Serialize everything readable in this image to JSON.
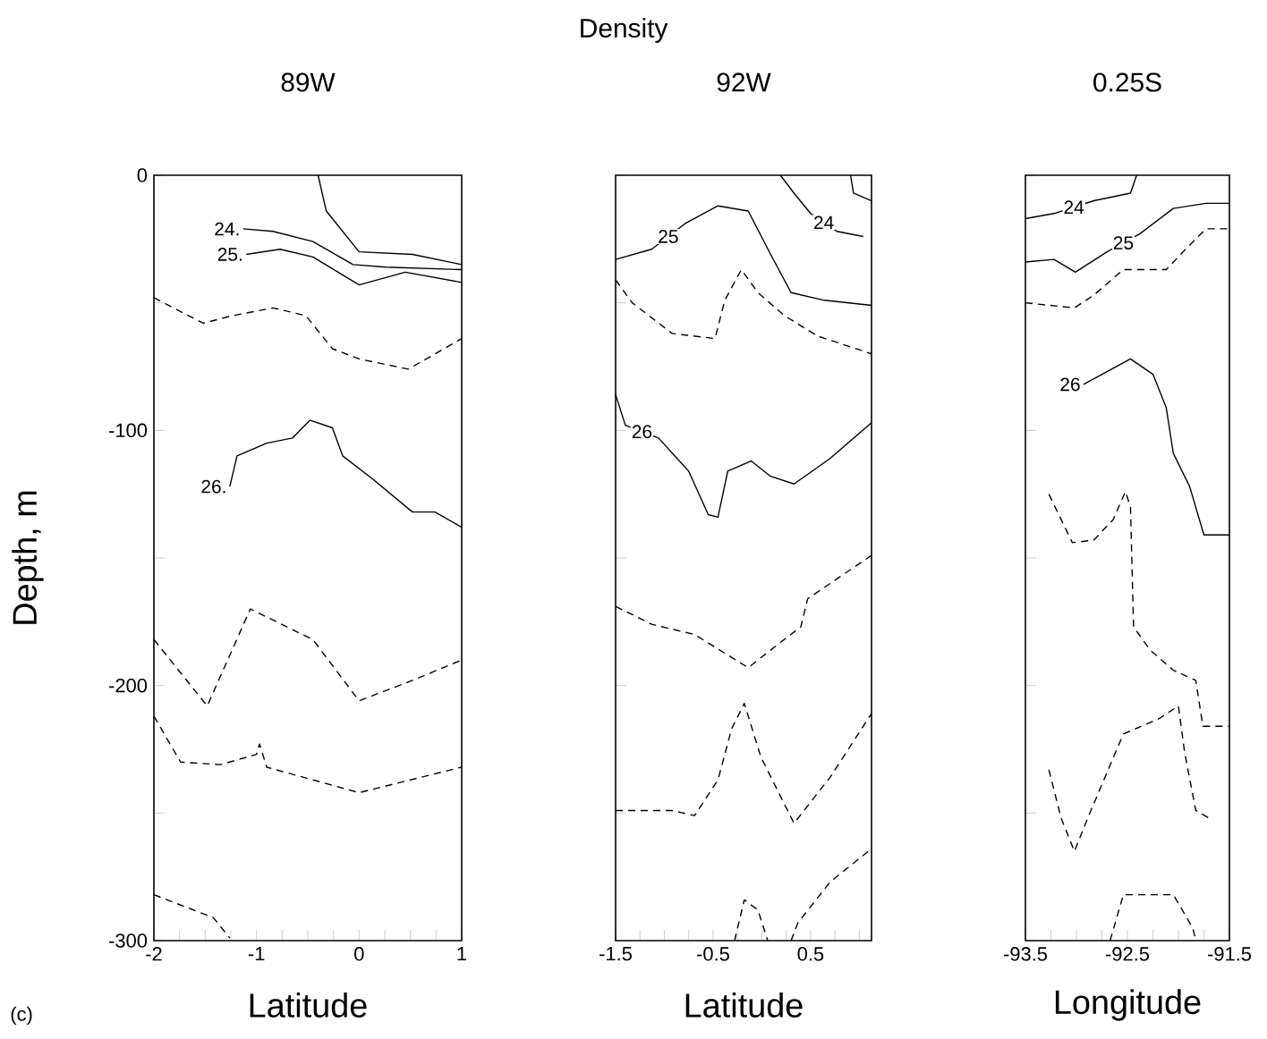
{
  "chart_data": [
    {
      "type": "line",
      "title": "89W",
      "xlabel": "Latitude",
      "ylabel": "Depth, m",
      "xlim": [
        -2,
        1
      ],
      "ylim": [
        -300,
        0
      ],
      "xticks": [
        -2,
        {
          "value": -1.75,
          "label": null
        },
        {
          "value": -1.5,
          "label": null
        },
        {
          "value": -1.25,
          "label": null
        },
        -1,
        {
          "value": -0.75,
          "label": null
        },
        {
          "value": -0.5,
          "label": null
        },
        {
          "value": -0.25,
          "label": null
        },
        0,
        {
          "value": 0.25,
          "label": null
        },
        {
          "value": 0.5,
          "label": null
        },
        {
          "value": 0.75,
          "label": null
        },
        1
      ],
      "yticks": [
        -300,
        {
          "value": -250,
          "label": null
        },
        -200,
        {
          "value": -150,
          "label": null
        },
        -100,
        {
          "value": -50,
          "label": null
        },
        0
      ],
      "annotations": [
        "(c)"
      ],
      "series": [
        {
          "color": "#000000",
          "line_style": "solid",
          "x": [
            -0.4,
            -0.32,
            0,
            0.52,
            1
          ],
          "values": [
            0,
            -14,
            -30,
            -31,
            -35
          ]
        },
        {
          "name": "24.",
          "color": "#000000",
          "line_style": "solid",
          "x": [
            -1.13,
            -0.84,
            -0.45,
            -0.06,
            0.26,
            1
          ],
          "values": [
            -21,
            -22,
            -26,
            -35,
            -36,
            -37
          ]
        },
        {
          "name": "25.",
          "color": "#000000",
          "line_style": "solid",
          "x": [
            -1.1,
            -0.77,
            -0.45,
            0,
            0.45,
            1
          ],
          "values": [
            -31,
            -29,
            -32,
            -43,
            -38,
            -42
          ]
        },
        {
          "color": "#000000",
          "line_style": "dashed",
          "x": [
            -2,
            -1.52,
            -1.23,
            -0.84,
            -0.52,
            -0.26,
            0,
            0.48,
            1
          ],
          "values": [
            -48,
            -58,
            -55,
            -52,
            -55,
            -68,
            -72,
            -76,
            -64
          ]
        },
        {
          "name": "26.",
          "color": "#000000",
          "line_style": "solid",
          "x": [
            -1.26,
            -1.19,
            -0.9,
            -0.65,
            -0.48,
            -0.26,
            -0.16,
            0.13,
            0.52,
            0.74,
            1
          ],
          "values": [
            -122,
            -110,
            -105,
            -103,
            -96,
            -99,
            -110,
            -119,
            -132,
            -132,
            -138
          ]
        },
        {
          "color": "#000000",
          "line_style": "dashed",
          "x": [
            -2,
            -1.48,
            -1.06,
            -0.45,
            0,
            0.52,
            1
          ],
          "values": [
            -182,
            -208,
            -170,
            -182,
            -206,
            -198,
            -190
          ]
        },
        {
          "color": "#000000",
          "line_style": "dashed",
          "x": [
            -2,
            -1.74,
            -1.35,
            -1,
            -0.97,
            -0.9,
            0,
            1
          ],
          "values": [
            -212,
            -230,
            -231,
            -227,
            -223,
            -232,
            -242,
            -232
          ]
        },
        {
          "color": "#000000",
          "line_style": "dashed",
          "x": [
            -2,
            -1.42,
            -1.26
          ],
          "values": [
            -282,
            -291,
            -299
          ]
        }
      ]
    },
    {
      "type": "line",
      "title": "Density",
      "subtitle": "92W",
      "xlabel": "Latitude",
      "xlim": [
        -1.5,
        1.125
      ],
      "ylim": [
        -300,
        0
      ],
      "tick_labels": "x",
      "xticks": [
        -1.5,
        {
          "value": -1.25,
          "label": null
        },
        {
          "value": -1,
          "label": null
        },
        {
          "value": -0.75,
          "label": null
        },
        -0.5,
        {
          "value": -0.25,
          "label": null
        },
        {
          "value": 0,
          "label": null
        },
        {
          "value": 0.25,
          "label": null
        },
        0.5,
        {
          "value": 0.75,
          "label": null
        },
        {
          "value": 1,
          "label": null
        }
      ],
      "yticks": [
        -300,
        -250,
        -200,
        -150,
        -100,
        -50,
        0
      ],
      "series": [
        {
          "name": "24",
          "color": "#000000",
          "line_style": "solid",
          "x": [
            0.19,
            0.33,
            0.5,
            0.77,
            1.04
          ],
          "values": [
            0,
            -7,
            -15,
            -22,
            -24
          ]
        },
        {
          "color": "#000000",
          "line_style": "solid",
          "x": [
            0.91,
            0.94,
            1.125
          ],
          "values": [
            0,
            -7,
            -10
          ]
        },
        {
          "name": "25",
          "color": "#000000",
          "line_style": "solid",
          "x": [
            -1.5,
            -1.13,
            -0.79,
            -0.45,
            -0.14,
            0.09,
            0.3,
            0.64,
            1.125
          ],
          "values": [
            -33,
            -29,
            -19,
            -12,
            -14,
            -31,
            -46,
            -49,
            -51
          ]
        },
        {
          "color": "#000000",
          "line_style": "dashed",
          "x": [
            -1.5,
            -1.33,
            -0.92,
            -0.48,
            -0.38,
            -0.21,
            -0.04,
            0.23,
            0.57,
            1.125
          ],
          "values": [
            -41,
            -50,
            -62,
            -64,
            -49,
            -37,
            -46,
            -55,
            -63,
            -70
          ]
        },
        {
          "name": "26",
          "color": "#000000",
          "line_style": "solid",
          "x": [
            -1.5,
            -1.4,
            -1.06,
            -0.75,
            -0.55,
            -0.45,
            -0.35,
            -0.11,
            0.09,
            0.33,
            0.7,
            1.125
          ],
          "values": [
            -86,
            -98,
            -103,
            -116,
            -133,
            -134,
            -116,
            -112,
            -118,
            -121,
            -111,
            -97
          ]
        },
        {
          "color": "#000000",
          "line_style": "dashed",
          "x": [
            -1.5,
            -1.13,
            -0.69,
            -0.14,
            0.16,
            0.4,
            0.47,
            1.125
          ],
          "values": [
            -169,
            -176,
            -180,
            -193,
            -184,
            -177,
            -166,
            -149
          ]
        },
        {
          "color": "#000000",
          "line_style": "dashed",
          "x": [
            -1.5,
            -0.92,
            -0.69,
            -0.45,
            -0.31,
            -0.18,
            -0.01,
            0.33,
            0.7,
            1.125
          ],
          "values": [
            -249,
            -249,
            -251,
            -237,
            -217,
            -207,
            -228,
            -254,
            -236,
            -211
          ]
        },
        {
          "color": "#000000",
          "line_style": "dashed",
          "x": [
            0.3,
            0.37,
            0.7,
            1.125
          ],
          "values": [
            -300,
            -293,
            -277,
            -264
          ]
        },
        {
          "color": "#000000",
          "line_style": "dashed",
          "x": [
            -0.28,
            -0.18,
            -0.04,
            0.06
          ],
          "values": [
            -300,
            -284,
            -288,
            -300
          ]
        }
      ]
    },
    {
      "type": "line",
      "title": "0.25S",
      "xlabel": "Longitude",
      "xlim": [
        -93.5,
        -91.5
      ],
      "ylim": [
        -300,
        0
      ],
      "tick_labels": "x",
      "xticks": [
        -93.5,
        {
          "value": -93.25,
          "label": null
        },
        {
          "value": -93,
          "label": null
        },
        {
          "value": -92.75,
          "label": null
        },
        -92.5,
        {
          "value": -92.25,
          "label": null
        },
        {
          "value": -92,
          "label": null
        },
        {
          "value": -91.75,
          "label": null
        },
        -91.5
      ],
      "yticks": [
        -300,
        -250,
        -200,
        -150,
        -100,
        -50,
        0
      ],
      "series": [
        {
          "name": "24",
          "color": "#000000",
          "line_style": "solid",
          "x": [
            -93.5,
            -93.22,
            -92.83,
            -92.47,
            -92.41
          ],
          "values": [
            -17,
            -15,
            -10,
            -7,
            0
          ]
        },
        {
          "name": "25",
          "color": "#000000",
          "line_style": "solid",
          "x": [
            -93.5,
            -93.22,
            -93.01,
            -92.7,
            -92.38,
            -92.05,
            -91.73,
            -91.5
          ],
          "values": [
            -34,
            -33,
            -38,
            -30,
            -23,
            -13,
            -11,
            -11
          ]
        },
        {
          "color": "#000000",
          "line_style": "dashed",
          "x": [
            -93.5,
            -93.02,
            -92.83,
            -92.54,
            -92.12,
            -91.93,
            -91.73,
            -91.5
          ],
          "values": [
            -50,
            -52,
            -47,
            -37,
            -37,
            -29,
            -21,
            -21
          ]
        },
        {
          "name": "26",
          "color": "#000000",
          "line_style": "solid",
          "x": [
            -92.93,
            -92.7,
            -92.47,
            -92.25,
            -92.12,
            -92.05,
            -91.89,
            -91.75,
            -91.5
          ],
          "values": [
            -82,
            -77,
            -72,
            -78,
            -91,
            -109,
            -122,
            -141,
            -141
          ]
        },
        {
          "color": "#000000",
          "line_style": "dashed",
          "x": [
            -93.27,
            -93.04,
            -92.83,
            -92.64,
            -92.52,
            -92.47,
            -92.44,
            -92.28,
            -92.05,
            -91.83,
            -91.76,
            -91.5
          ],
          "values": [
            -125,
            -144,
            -143,
            -135,
            -124,
            -130,
            -177,
            -186,
            -194,
            -198,
            -216,
            -216
          ]
        },
        {
          "color": "#000000",
          "line_style": "dashed",
          "x": [
            -93.27,
            -93.15,
            -93.02,
            -92.89,
            -92.54,
            -92.19,
            -92,
            -91.94,
            -91.83,
            -91.7
          ],
          "values": [
            -233,
            -252,
            -265,
            -252,
            -219,
            -213,
            -208,
            -226,
            -249,
            -252
          ]
        },
        {
          "color": "#000000",
          "line_style": "dashed",
          "x": [
            -92.67,
            -92.54,
            -92.05,
            -91.86,
            -91.83
          ],
          "values": [
            -300,
            -282,
            -282,
            -295,
            -300
          ]
        }
      ]
    }
  ]
}
